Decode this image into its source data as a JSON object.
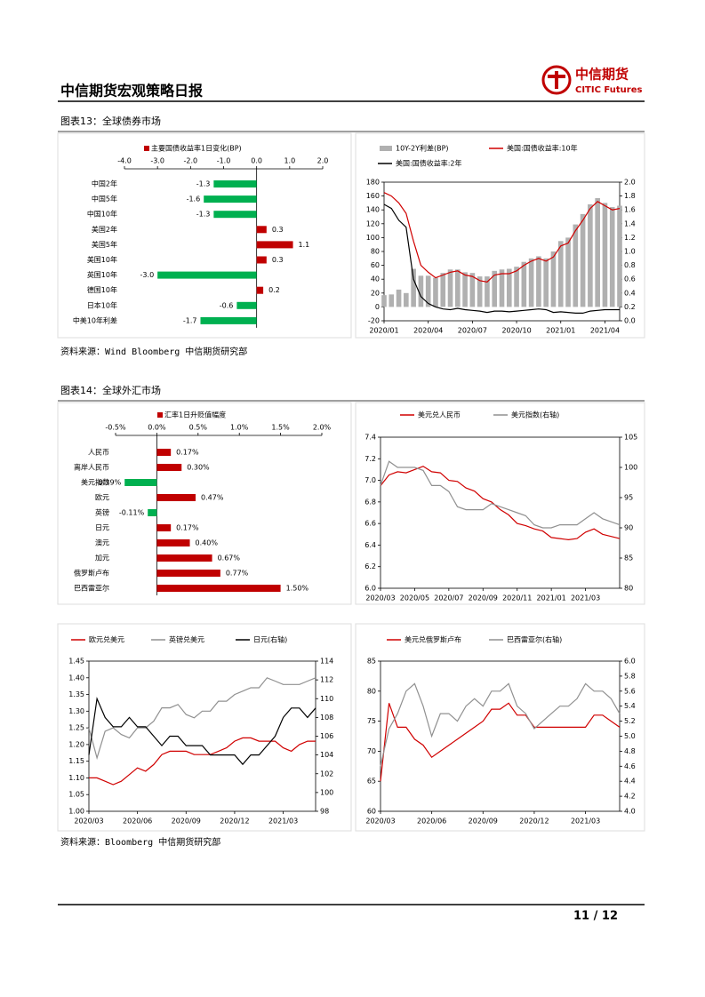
{
  "header": {
    "title": "中信期货宏观策略日报",
    "logo_cn": "中信期货",
    "logo_en": "CITIC Futures"
  },
  "figure13": {
    "caption": "图表13：全球债券市场",
    "source": "资料来源：Wind Bloomberg 中信期货研究部"
  },
  "figure14": {
    "caption": "图表14：全球外汇市场",
    "source": "资料来源：Bloomberg 中信期货研究部"
  },
  "footer": {
    "page": "11 / 12"
  },
  "chart_data": [
    {
      "type": "hbar",
      "categories": [
        "中国2年",
        "中国5年",
        "中国10年",
        "美国2年",
        "美国5年",
        "美国10年",
        "英国10年",
        "德国10年",
        "日本10年",
        "中美10年利差"
      ],
      "series": [
        {
          "name": "主要国债收益率1日变化(BP)",
          "color": "#c00000",
          "negative_color": "#00b050",
          "values": [
            -1.3,
            -1.6,
            -1.3,
            0.3,
            1.1,
            0.3,
            -3.0,
            0.2,
            -0.6,
            -1.7
          ],
          "value_labels": [
            "-1.3",
            "-1.6",
            "-1.3",
            "0.3",
            "1.1",
            "0.3",
            "-3.0",
            "0.2",
            "-0.6",
            "-1.7"
          ]
        }
      ],
      "xlim": [
        -4,
        2
      ],
      "xticks": [
        {
          "value": -4,
          "label": "-4.0"
        },
        {
          "value": -3,
          "label": "-3.0"
        },
        {
          "value": -2,
          "label": "-2.0"
        },
        {
          "value": -1,
          "label": "-1.0"
        },
        {
          "value": 0,
          "label": "0.0"
        },
        {
          "value": 1,
          "label": "1.0"
        },
        {
          "value": 2,
          "label": "2.0"
        }
      ]
    },
    {
      "type": "line",
      "categories": [
        "2020/01",
        null,
        null,
        null,
        null,
        null,
        "2020/04",
        null,
        null,
        null,
        null,
        null,
        "2020/07",
        null,
        null,
        null,
        null,
        null,
        "2020/10",
        null,
        null,
        null,
        null,
        null,
        "2021/01",
        null,
        null,
        null,
        null,
        null,
        "2021/04",
        null,
        null
      ],
      "series": [
        {
          "name": "10Y-2Y利差(BP)",
          "type": "bar",
          "color": "#b0b0b0",
          "values": [
            17,
            18,
            25,
            20,
            55,
            45,
            45,
            42,
            49,
            54,
            54,
            50,
            49,
            44,
            44,
            52,
            54,
            55,
            58,
            65,
            70,
            73,
            70,
            80,
            95,
            100,
            119,
            134,
            148,
            157,
            150,
            144,
            146
          ]
        },
        {
          "name": "美国:国债收益率:10年",
          "color": "#d00000",
          "axis": "y2",
          "values": [
            1.85,
            1.8,
            1.7,
            1.55,
            1.15,
            0.8,
            0.7,
            0.62,
            0.66,
            0.7,
            0.72,
            0.66,
            0.64,
            0.58,
            0.56,
            0.66,
            0.68,
            0.68,
            0.72,
            0.8,
            0.86,
            0.9,
            0.86,
            0.92,
            1.08,
            1.12,
            1.3,
            1.45,
            1.62,
            1.72,
            1.66,
            1.6,
            1.62
          ]
        },
        {
          "name": "美国:国债收益率:2年",
          "color": "#000000",
          "axis": "y2",
          "values": [
            1.68,
            1.62,
            1.45,
            1.35,
            0.6,
            0.35,
            0.25,
            0.2,
            0.17,
            0.16,
            0.18,
            0.16,
            0.15,
            0.14,
            0.12,
            0.14,
            0.14,
            0.13,
            0.14,
            0.15,
            0.16,
            0.17,
            0.16,
            0.12,
            0.13,
            0.12,
            0.11,
            0.11,
            0.14,
            0.15,
            0.16,
            0.16,
            0.16
          ]
        }
      ],
      "ylim": [
        -20,
        180
      ],
      "yticks": [
        -20,
        0,
        20,
        40,
        60,
        80,
        100,
        120,
        140,
        160,
        180
      ],
      "y2lim": [
        0,
        2
      ],
      "y2ticks": [
        {
          "value": 0,
          "label": "0.0"
        },
        0.2,
        0.4,
        0.6,
        0.8,
        {
          "value": 1,
          "label": "1.0"
        },
        1.2,
        1.4,
        1.6,
        1.8,
        {
          "value": 2,
          "label": "2.0"
        }
      ]
    },
    {
      "type": "hbar",
      "categories": [
        "人民币",
        "离岸人民币",
        "美元指数",
        "欧元",
        "英镑",
        "日元",
        "澳元",
        "加元",
        "俄罗斯卢布",
        "巴西雷亚尔"
      ],
      "series": [
        {
          "name": "汇率1日升贬值幅度",
          "color": "#c00000",
          "negative_color": "#00b050",
          "values": [
            0.17,
            0.3,
            -0.39,
            0.47,
            -0.11,
            0.17,
            0.4,
            0.67,
            0.77,
            1.5
          ],
          "value_labels": [
            "0.17%",
            "0.30%",
            "-0.39%",
            "0.47%",
            "-0.11%",
            "0.17%",
            "0.40%",
            "0.67%",
            "0.77%",
            "1.50%"
          ]
        }
      ],
      "xlim": [
        -0.5,
        2
      ],
      "xticks": [
        {
          "value": -0.5,
          "label": "-0.5%"
        },
        {
          "value": 0,
          "label": "0.0%"
        },
        {
          "value": 0.5,
          "label": "0.5%"
        },
        {
          "value": 1,
          "label": "1.0%"
        },
        {
          "value": 1.5,
          "label": "1.5%"
        },
        {
          "value": 2,
          "label": "2.0%"
        }
      ]
    },
    {
      "type": "line",
      "categories": [
        "2020/03",
        null,
        null,
        null,
        "2020/05",
        null,
        null,
        null,
        "2020/07",
        null,
        null,
        null,
        "2020/09",
        null,
        null,
        null,
        "2020/11",
        null,
        null,
        null,
        "2021/01",
        null,
        null,
        null,
        "2021/03",
        null,
        null,
        null,
        null
      ],
      "series": [
        {
          "name": "美元兑人民币",
          "color": "#d00000",
          "values": [
            6.95,
            7.05,
            7.08,
            7.07,
            7.1,
            7.13,
            7.08,
            7.07,
            7.0,
            6.99,
            6.93,
            6.9,
            6.83,
            6.8,
            6.73,
            6.68,
            6.6,
            6.58,
            6.55,
            6.53,
            6.47,
            6.46,
            6.45,
            6.46,
            6.52,
            6.55,
            6.5,
            6.48,
            6.46
          ]
        },
        {
          "name": "美元指数(右轴)",
          "color": "#909090",
          "axis": "y2",
          "values": [
            97,
            101,
            100,
            100,
            100,
            99.5,
            97,
            97,
            96,
            93.5,
            93,
            93,
            93,
            94,
            93.5,
            93,
            92.5,
            92,
            90.5,
            90,
            90,
            90.5,
            90.5,
            90.5,
            91.5,
            92.5,
            91.5,
            91,
            90.5
          ]
        }
      ],
      "ylim": [
        6,
        7.4
      ],
      "yticks": [
        {
          "value": 6,
          "label": "6.0"
        },
        6.2,
        6.4,
        6.6,
        6.8,
        {
          "value": 7,
          "label": "7.0"
        },
        7.2,
        7.4
      ],
      "y2lim": [
        80,
        105
      ],
      "y2ticks": [
        80,
        85,
        90,
        95,
        100,
        105
      ]
    },
    {
      "type": "line",
      "categories": [
        "2020/03",
        null,
        null,
        null,
        null,
        null,
        "2020/06",
        null,
        null,
        null,
        null,
        null,
        "2020/09",
        null,
        null,
        null,
        null,
        null,
        "2020/12",
        null,
        null,
        null,
        null,
        null,
        "2021/03",
        null,
        null,
        null,
        null
      ],
      "series": [
        {
          "name": "欧元兑美元",
          "color": "#d00000",
          "values": [
            1.1,
            1.1,
            1.09,
            1.08,
            1.09,
            1.11,
            1.13,
            1.12,
            1.14,
            1.17,
            1.18,
            1.18,
            1.18,
            1.17,
            1.17,
            1.17,
            1.18,
            1.19,
            1.21,
            1.22,
            1.22,
            1.21,
            1.21,
            1.21,
            1.19,
            1.18,
            1.2,
            1.21,
            1.21
          ]
        },
        {
          "name": "英镑兑美元",
          "color": "#909090",
          "values": [
            1.25,
            1.16,
            1.24,
            1.25,
            1.23,
            1.22,
            1.25,
            1.25,
            1.27,
            1.31,
            1.31,
            1.32,
            1.29,
            1.28,
            1.3,
            1.3,
            1.33,
            1.33,
            1.35,
            1.36,
            1.37,
            1.37,
            1.4,
            1.39,
            1.38,
            1.38,
            1.38,
            1.39,
            1.4
          ]
        },
        {
          "name": "日元(右轴)",
          "color": "#000000",
          "axis": "y2",
          "values": [
            104,
            110,
            108,
            107,
            107,
            108,
            107,
            107,
            106,
            105,
            106,
            106,
            105,
            105,
            105,
            104,
            104,
            104,
            104,
            103,
            104,
            104,
            105,
            106,
            108,
            109,
            109,
            108,
            109
          ]
        }
      ],
      "ylim": [
        1,
        1.45
      ],
      "yticks": [
        {
          "value": 1,
          "label": "1.00"
        },
        1.05,
        {
          "value": 1.1,
          "label": "1.10"
        },
        1.15,
        {
          "value": 1.2,
          "label": "1.20"
        },
        1.25,
        {
          "value": 1.3,
          "label": "1.30"
        },
        1.35,
        {
          "value": 1.4,
          "label": "1.40"
        },
        1.45
      ],
      "y2lim": [
        98,
        114
      ],
      "y2ticks": [
        98,
        100,
        102,
        104,
        106,
        108,
        110,
        112,
        114
      ]
    },
    {
      "type": "line",
      "categories": [
        "2020/03",
        null,
        null,
        null,
        null,
        null,
        "2020/06",
        null,
        null,
        null,
        null,
        null,
        "2020/09",
        null,
        null,
        null,
        null,
        null,
        "2020/12",
        null,
        null,
        null,
        null,
        null,
        "2021/03",
        null,
        null,
        null,
        null
      ],
      "series": [
        {
          "name": "美元兑俄罗斯卢布",
          "color": "#d00000",
          "values": [
            65,
            78,
            74,
            74,
            72,
            71,
            69,
            70,
            71,
            72,
            73,
            74,
            75,
            77,
            77,
            78,
            76,
            76,
            74,
            74,
            74,
            74,
            74,
            74,
            74,
            76,
            76,
            75,
            74
          ]
        },
        {
          "name": "巴西雷亚尔(右轴)",
          "color": "#909090",
          "axis": "y2",
          "values": [
            4.6,
            5.1,
            5.3,
            5.6,
            5.7,
            5.4,
            5.0,
            5.3,
            5.3,
            5.2,
            5.4,
            5.5,
            5.4,
            5.6,
            5.6,
            5.7,
            5.4,
            5.3,
            5.1,
            5.2,
            5.3,
            5.4,
            5.4,
            5.5,
            5.7,
            5.6,
            5.6,
            5.5,
            5.3
          ]
        }
      ],
      "ylim": [
        60,
        85
      ],
      "yticks": [
        60,
        65,
        70,
        75,
        80,
        85
      ],
      "y2lim": [
        4,
        6
      ],
      "y2ticks": [
        {
          "value": 4,
          "label": "4.0"
        },
        4.2,
        4.4,
        4.6,
        4.8,
        {
          "value": 5,
          "label": "5.0"
        },
        5.2,
        5.4,
        5.6,
        5.8,
        {
          "value": 6,
          "label": "6.0"
        }
      ]
    }
  ]
}
